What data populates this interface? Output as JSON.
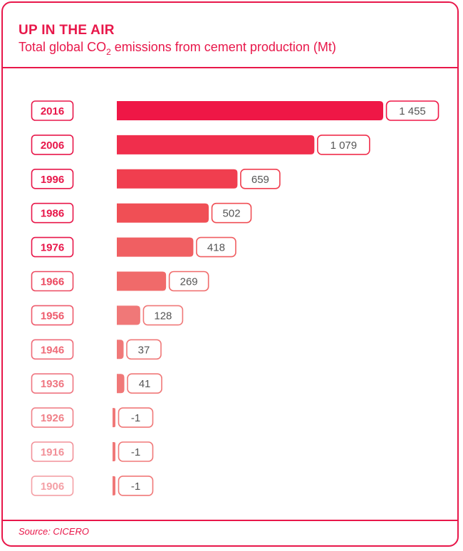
{
  "title": "UP IN THE AIR",
  "subtitle_pre": "Total global CO",
  "subtitle_sub": "2",
  "subtitle_post": " emissions from cement production (Mt)",
  "source": "Source: CICERO",
  "colors": {
    "accent": "#e8174a",
    "bars": [
      "#ef1746",
      "#f02e4c",
      "#f03e4f",
      "#f04f55",
      "#f05f62",
      "#f06a6a",
      "#f07878",
      "#f07878",
      "#f07878",
      "#f07878",
      "#f07878",
      "#f07878"
    ],
    "labels": [
      "#e8174a",
      "#e8174a",
      "#e8174a",
      "#e8174a",
      "#e8174a",
      "#ec4960",
      "#ee5b6c",
      "#ef6b78",
      "#ef7580",
      "#f08088",
      "#f29098",
      "#f4a0a6"
    ]
  },
  "chart_data": {
    "type": "bar",
    "orientation": "horizontal",
    "title": "UP IN THE AIR",
    "subtitle": "Total global CO2 emissions from cement production (Mt)",
    "categories": [
      "2016",
      "2006",
      "1996",
      "1986",
      "1976",
      "1966",
      "1956",
      "1946",
      "1936",
      "1926",
      "1916",
      "1906"
    ],
    "values": [
      1455,
      1079,
      659,
      502,
      418,
      269,
      128,
      37,
      41,
      -1,
      -1,
      -1
    ],
    "value_labels": [
      "1 455",
      "1 079",
      "659",
      "502",
      "418",
      "269",
      "128",
      "37",
      "41",
      "-1",
      "-1",
      "-1"
    ],
    "xlim": [
      0,
      1455
    ],
    "grid": false,
    "legend": "none"
  }
}
